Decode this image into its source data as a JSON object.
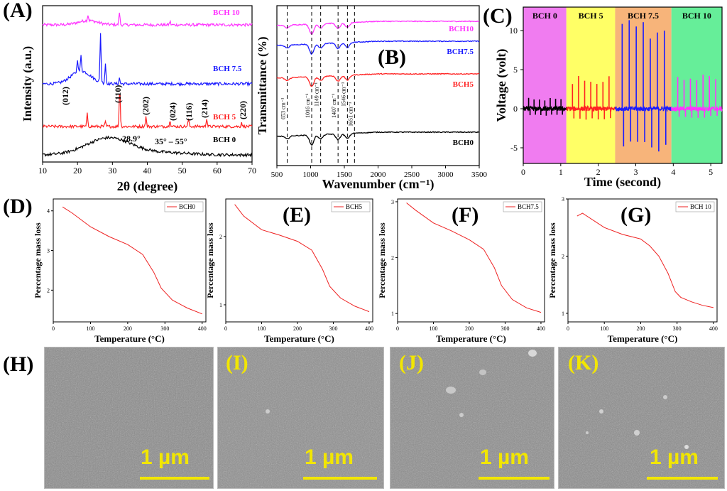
{
  "panels": {
    "A": "(A)",
    "B": "(B)",
    "C": "(C)",
    "D": "(D)",
    "E": "(E)",
    "F": "(F)",
    "G": "(G)",
    "H": "(H)",
    "I": "(I)",
    "J": "(J)",
    "K": "(K)"
  },
  "sem": {
    "scale_label": "1 µm",
    "labels": [
      "(H)",
      "(I)",
      "(J)",
      "(K)"
    ],
    "label_colors": [
      "#000000",
      "#f2e600",
      "#f2e600",
      "#f2e600"
    ]
  },
  "chart_data": [
    {
      "id": "A",
      "type": "line",
      "title": "",
      "xlabel": "2θ (degree)",
      "ylabel": "Intensity (a.u.)",
      "xlim": [
        10,
        70
      ],
      "xticks": [
        10,
        20,
        30,
        40,
        50,
        60,
        70
      ],
      "series": [
        {
          "name": "BCH 10",
          "color": "#ff33ff"
        },
        {
          "name": "BCH 7.5",
          "color": "#1a1aff"
        },
        {
          "name": "BCH 5",
          "color": "#ff2222"
        },
        {
          "name": "BCH 0",
          "color": "#000000"
        }
      ],
      "annotations": [
        "(012)",
        "(110)",
        "(202)",
        "(024)",
        "(116)",
        "(214)",
        "(220)",
        "28.9°",
        "35° – 55°"
      ]
    },
    {
      "id": "B",
      "type": "line",
      "title": "",
      "xlabel": "Wavenumber (cm⁻¹)",
      "ylabel": "Transmittance (%)",
      "xlim": [
        500,
        3500
      ],
      "xticks": [
        500,
        1000,
        1500,
        2000,
        2500,
        3000,
        3500
      ],
      "series": [
        {
          "name": "BCH10",
          "color": "#ff33ff"
        },
        {
          "name": "BCH7.5",
          "color": "#1a1aff"
        },
        {
          "name": "BCH5",
          "color": "#ff2222"
        },
        {
          "name": "BCH0",
          "color": "#000000"
        }
      ],
      "marked_bands": [
        {
          "x": 653,
          "label": "653 cm⁻¹"
        },
        {
          "x": 1016,
          "label": "1016 cm⁻¹"
        },
        {
          "x": 1149,
          "label": "1149 cm⁻¹"
        },
        {
          "x": 1407,
          "label": "1407 cm⁻¹"
        },
        {
          "x": 1546,
          "label": "1546 cm⁻¹"
        },
        {
          "x": 1651,
          "label": "1651 cm⁻¹"
        }
      ]
    },
    {
      "id": "C",
      "type": "line",
      "title": "",
      "xlabel": "Time (second)",
      "ylabel": "Voltage (volt)",
      "xlim": [
        0,
        5.3
      ],
      "ylim": [
        -7,
        13
      ],
      "xticks": [
        0,
        1,
        2,
        3,
        4,
        5
      ],
      "yticks": [
        -5,
        0,
        5,
        10
      ],
      "regions": [
        {
          "name": "BCH 0",
          "x0": 0,
          "x1": 1.15,
          "color": "#f07cf0"
        },
        {
          "name": "BCH 5",
          "x0": 1.15,
          "x1": 2.45,
          "color": "#ffff66"
        },
        {
          "name": "BCH 7.5",
          "x0": 2.45,
          "x1": 3.95,
          "color": "#f7b47a"
        },
        {
          "name": "BCH 10",
          "x0": 3.95,
          "x1": 5.3,
          "color": "#66ee99"
        }
      ],
      "series": [
        {
          "name": "BCH 0",
          "color": "#000000",
          "pos_peak": 1.4,
          "neg_peak": -0.9
        },
        {
          "name": "BCH 5",
          "color": "#ff2222",
          "pos_peak": 4.2,
          "neg_peak": -1.6
        },
        {
          "name": "BCH 7.5",
          "color": "#1a1aff",
          "pos_peak": 11.5,
          "neg_peak": -5.6
        },
        {
          "name": "BCH 10",
          "color": "#ff33ff",
          "pos_peak": 4.5,
          "neg_peak": -1.2
        }
      ]
    },
    {
      "id": "D",
      "type": "line",
      "xlabel": "Temperature (°C)",
      "ylabel": "Percentage mass loss",
      "xlim": [
        0,
        410
      ],
      "ylim": [
        1.2,
        4.3
      ],
      "xticks": [
        0,
        100,
        200,
        300,
        400
      ],
      "yticks": [
        2,
        3,
        4
      ],
      "series": [
        {
          "name": "BCH0",
          "color": "#ee2222",
          "x": [
            25,
            50,
            100,
            150,
            200,
            240,
            270,
            290,
            320,
            360,
            400
          ],
          "y": [
            4.1,
            3.95,
            3.6,
            3.35,
            3.15,
            2.9,
            2.45,
            2.05,
            1.75,
            1.55,
            1.4
          ]
        }
      ]
    },
    {
      "id": "E",
      "type": "line",
      "xlabel": "Temperature (°C)",
      "ylabel": "Percentage mass loss",
      "xlim": [
        0,
        410
      ],
      "ylim": [
        0.75,
        2.55
      ],
      "xticks": [
        0,
        100,
        200,
        300,
        400
      ],
      "yticks": [
        1,
        2
      ],
      "series": [
        {
          "name": "BCH5",
          "color": "#ee2222",
          "x": [
            25,
            50,
            100,
            150,
            200,
            240,
            270,
            290,
            320,
            360,
            400
          ],
          "y": [
            2.47,
            2.3,
            2.1,
            2.02,
            1.93,
            1.8,
            1.52,
            1.27,
            1.1,
            0.98,
            0.9
          ]
        }
      ]
    },
    {
      "id": "F",
      "type": "line",
      "xlabel": "Temperature (°C)",
      "ylabel": "Percentage mass loss",
      "xlim": [
        0,
        410
      ],
      "ylim": [
        0.85,
        3.05
      ],
      "xticks": [
        0,
        100,
        200,
        300,
        400
      ],
      "yticks": [
        1,
        2,
        3
      ],
      "series": [
        {
          "name": "BCH7.5",
          "color": "#ee2222",
          "x": [
            25,
            50,
            100,
            150,
            200,
            240,
            270,
            290,
            320,
            360,
            400
          ],
          "y": [
            2.98,
            2.85,
            2.62,
            2.48,
            2.32,
            2.15,
            1.82,
            1.5,
            1.25,
            1.1,
            1.02
          ]
        }
      ]
    },
    {
      "id": "G",
      "type": "line",
      "xlabel": "Temperature (°C)",
      "ylabel": "Percentage mass loss",
      "xlim": [
        0,
        410
      ],
      "ylim": [
        0.85,
        3.0
      ],
      "xticks": [
        0,
        100,
        200,
        300,
        400
      ],
      "yticks": [
        1,
        2,
        3
      ],
      "series": [
        {
          "name": "BCH 10",
          "color": "#ee2222",
          "x": [
            25,
            40,
            100,
            150,
            200,
            225,
            250,
            275,
            295,
            310,
            340,
            370,
            400
          ],
          "y": [
            2.7,
            2.75,
            2.5,
            2.38,
            2.3,
            2.18,
            2.0,
            1.7,
            1.38,
            1.28,
            1.2,
            1.14,
            1.1
          ]
        }
      ]
    }
  ]
}
